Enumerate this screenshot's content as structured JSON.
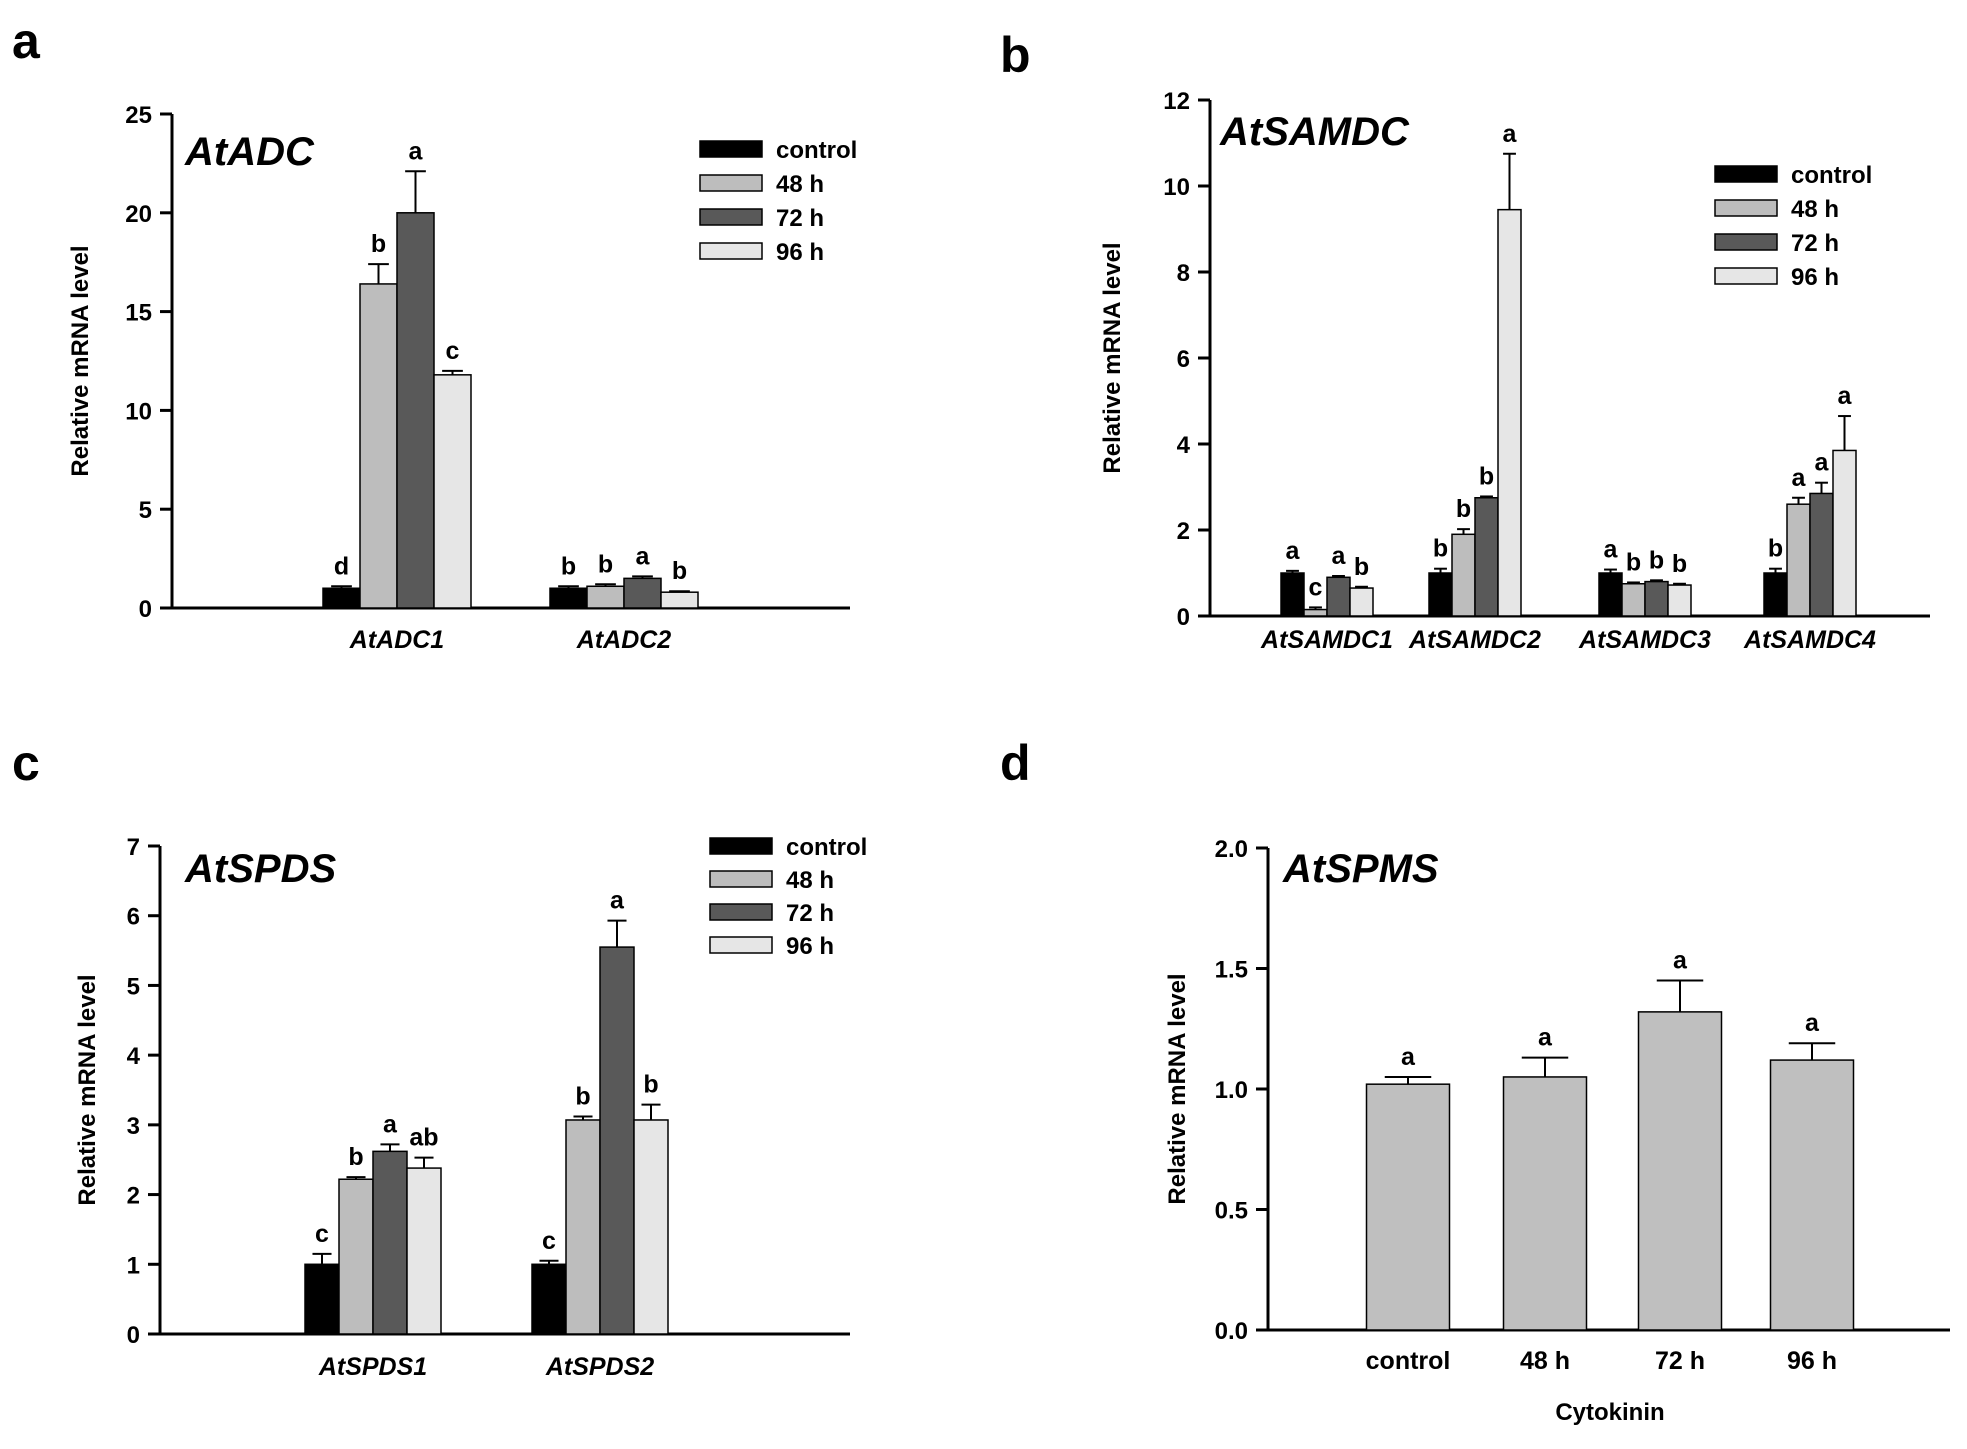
{
  "colors": {
    "control": "#000000",
    "48 h": "#bdbdbd",
    "72 h": "#595959",
    "96 h": "#e6e6e6",
    "panel_d_bar": "#bfbfbf"
  },
  "chart_data": [
    {
      "panel": "a",
      "type": "bar",
      "title": "AtADC",
      "ylabel": "Relative mRNA level",
      "xlabel": "",
      "ylim": [
        0,
        25
      ],
      "yticks": [
        "0",
        "5",
        "10",
        "15",
        "20",
        "25"
      ],
      "categories": [
        "AtADC1",
        "AtADC2"
      ],
      "legend": [
        "control",
        "48 h",
        "72 h",
        "96 h"
      ],
      "series": [
        {
          "name": "control",
          "values": [
            1.0,
            1.0
          ],
          "errors": [
            0.1,
            0.1
          ],
          "sig": [
            "d",
            "b"
          ]
        },
        {
          "name": "48 h",
          "values": [
            16.4,
            1.1
          ],
          "errors": [
            1.0,
            0.1
          ],
          "sig": [
            "b",
            "b"
          ]
        },
        {
          "name": "72 h",
          "values": [
            20.0,
            1.5
          ],
          "errors": [
            2.1,
            0.1
          ],
          "sig": [
            "a",
            "a"
          ]
        },
        {
          "name": "96 h",
          "values": [
            11.8,
            0.8
          ],
          "errors": [
            0.2,
            0.05
          ],
          "sig": [
            "c",
            "b"
          ]
        }
      ]
    },
    {
      "panel": "b",
      "type": "bar",
      "title": "AtSAMDC",
      "ylabel": "Relative mRNA level",
      "xlabel": "",
      "ylim": [
        0,
        12
      ],
      "yticks": [
        "0",
        "2",
        "4",
        "6",
        "8",
        "10",
        "12"
      ],
      "categories": [
        "AtSAMDC1",
        "AtSAMDC2",
        "AtSAMDC3",
        "AtSAMDC4"
      ],
      "legend": [
        "control",
        "48 h",
        "72 h",
        "96 h"
      ],
      "series": [
        {
          "name": "control",
          "values": [
            1.0,
            1.0,
            1.0,
            1.0
          ],
          "errors": [
            0.05,
            0.1,
            0.08,
            0.1
          ],
          "sig": [
            "a",
            "b",
            "a",
            "b"
          ]
        },
        {
          "name": "48 h",
          "values": [
            0.15,
            1.9,
            0.75,
            2.6
          ],
          "errors": [
            0.05,
            0.12,
            0.03,
            0.15
          ],
          "sig": [
            "c",
            "b",
            "b",
            "a"
          ]
        },
        {
          "name": "72 h",
          "values": [
            0.9,
            2.75,
            0.8,
            2.85
          ],
          "errors": [
            0.03,
            0.03,
            0.03,
            0.25
          ],
          "sig": [
            "a",
            "b",
            "b",
            "a"
          ]
        },
        {
          "name": "96 h",
          "values": [
            0.65,
            9.45,
            0.72,
            3.85
          ],
          "errors": [
            0.03,
            1.3,
            0.03,
            0.8
          ],
          "sig": [
            "b",
            "a",
            "b",
            "a"
          ]
        }
      ]
    },
    {
      "panel": "c",
      "type": "bar",
      "title": "AtSPDS",
      "ylabel": "Relative mRNA level",
      "xlabel": "",
      "ylim": [
        0,
        7
      ],
      "yticks": [
        "0",
        "1",
        "2",
        "3",
        "4",
        "5",
        "6",
        "7"
      ],
      "categories": [
        "AtSPDS1",
        "AtSPDS2"
      ],
      "legend": [
        "control",
        "48 h",
        "72 h",
        "96 h"
      ],
      "series": [
        {
          "name": "control",
          "values": [
            1.0,
            1.0
          ],
          "errors": [
            0.15,
            0.05
          ],
          "sig": [
            "c",
            "c"
          ]
        },
        {
          "name": "48 h",
          "values": [
            2.22,
            3.07
          ],
          "errors": [
            0.03,
            0.05
          ],
          "sig": [
            "b",
            "b"
          ]
        },
        {
          "name": "72 h",
          "values": [
            2.62,
            5.55
          ],
          "errors": [
            0.1,
            0.38
          ],
          "sig": [
            "a",
            "a"
          ]
        },
        {
          "name": "96 h",
          "values": [
            2.38,
            3.07
          ],
          "errors": [
            0.15,
            0.22
          ],
          "sig": [
            "ab",
            "b"
          ]
        }
      ]
    },
    {
      "panel": "d",
      "type": "bar",
      "title": "AtSPMS",
      "ylabel": "Relative mRNA level",
      "xlabel": "Cytokinin",
      "ylim": [
        0,
        2.0
      ],
      "yticks": [
        "0.0",
        "0.5",
        "1.0",
        "1.5",
        "2.0"
      ],
      "categories": [
        "control",
        "48 h",
        "72 h",
        "96 h"
      ],
      "values": [
        1.02,
        1.05,
        1.32,
        1.12
      ],
      "errors": [
        0.03,
        0.08,
        0.13,
        0.07
      ],
      "sig": [
        "a",
        "a",
        "a",
        "a"
      ]
    }
  ]
}
